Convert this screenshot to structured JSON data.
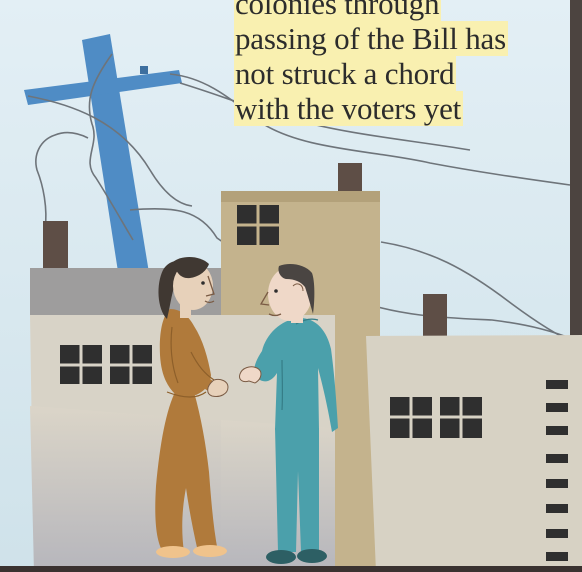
{
  "caption": {
    "lines": [
      "colonies through",
      "passing of the Bill has",
      "not struck a chord",
      "with the voters yet"
    ]
  },
  "colors": {
    "sky": "#dcebf3",
    "highlight": "#f9f0b0",
    "pole": "#4f8cc5",
    "woman_clothing": "#b07a3b",
    "man_clothing": "#4ba0ab",
    "building_cream": "#d7d2c4",
    "building_tan": "#c2b08a"
  }
}
